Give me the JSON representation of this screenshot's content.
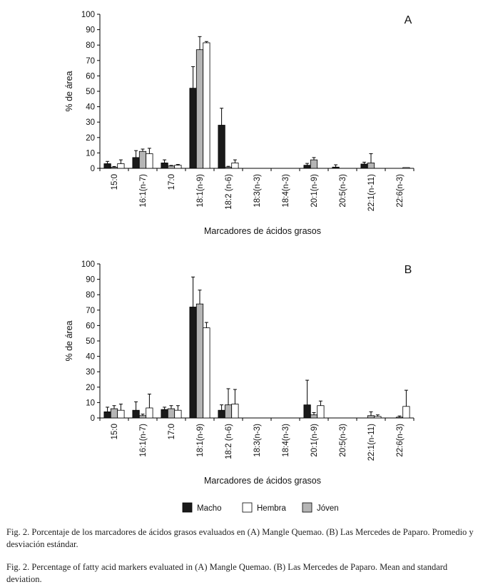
{
  "chart_data": [
    {
      "type": "bar",
      "panel_label": "A",
      "ylabel": "% de área",
      "xlabel": "Marcadores de ácidos grasos",
      "ylim": [
        0,
        100
      ],
      "yticks": [
        0,
        10,
        20,
        30,
        40,
        50,
        60,
        70,
        80,
        90,
        100
      ],
      "grid": false,
      "categories": [
        "15:0",
        "16:1(n-7)",
        "17:0",
        "18:1(n-9)",
        "18:2 (n-6)",
        "18:3(n-3)",
        "18:4(n-3)",
        "20:1(n-9)",
        "20:5(n-3)",
        "22:1(n-11)",
        "22:6(n-3)"
      ],
      "series": [
        {
          "name": "Macho",
          "color": "#1a1a1a",
          "values": [
            3,
            7,
            3.5,
            52,
            28,
            0,
            0,
            2,
            0.8,
            2.8,
            0
          ],
          "errors": [
            1.5,
            4.5,
            2,
            14,
            11,
            0,
            0,
            1.2,
            1.5,
            1.2,
            0
          ]
        },
        {
          "name": "Jóven",
          "color": "#b5b5b5",
          "values": [
            0.7,
            11,
            1.5,
            77,
            0.8,
            0,
            0,
            5.5,
            0,
            3.5,
            0
          ],
          "errors": [
            0.5,
            1.5,
            0.4,
            8.5,
            0.5,
            0,
            0,
            1.5,
            0,
            6,
            0
          ]
        },
        {
          "name": "Hembra",
          "color": "#ffffff",
          "values": [
            3,
            9.5,
            2,
            81.5,
            3.5,
            0,
            0,
            0,
            0,
            0,
            0.5
          ],
          "errors": [
            2.5,
            3.5,
            0.5,
            0.8,
            2,
            0,
            0,
            0,
            0,
            0,
            0
          ]
        }
      ]
    },
    {
      "type": "bar",
      "panel_label": "B",
      "ylabel": "% de área",
      "xlabel": "Marcadores de ácidos grasos",
      "ylim": [
        0,
        100
      ],
      "yticks": [
        0,
        10,
        20,
        30,
        40,
        50,
        60,
        70,
        80,
        90,
        100
      ],
      "grid": false,
      "categories": [
        "15:0",
        "16:1(n-7)",
        "17:0",
        "18:1(n-9)",
        "18:2 (n-6)",
        "18:3(n-3)",
        "18:4(n-3)",
        "20:1(n-9)",
        "20:5(n-3)",
        "22:1(n-11)",
        "22:6(n-3)"
      ],
      "series": [
        {
          "name": "Macho",
          "color": "#1a1a1a",
          "values": [
            4,
            5,
            5.5,
            72,
            5,
            0,
            0,
            8.5,
            0,
            0,
            0
          ],
          "errors": [
            3,
            5.5,
            1.5,
            19.5,
            3.5,
            0,
            0,
            16,
            0,
            0,
            0
          ]
        },
        {
          "name": "Jóven",
          "color": "#b5b5b5",
          "values": [
            6,
            1.5,
            6,
            74,
            8.5,
            0,
            0,
            2,
            0,
            1.5,
            0.5
          ],
          "errors": [
            2,
            1,
            2,
            9,
            10.5,
            0,
            0,
            1.5,
            0,
            2.5,
            0.8
          ]
        },
        {
          "name": "Hembra",
          "color": "#ffffff",
          "values": [
            5,
            6.5,
            5,
            58.5,
            9,
            0,
            0,
            8,
            0,
            1,
            7.5
          ],
          "errors": [
            4,
            9,
            3,
            3.5,
            9.5,
            0,
            0,
            3,
            0,
            1,
            10.5
          ]
        }
      ]
    }
  ],
  "legend": {
    "position": "bottom",
    "items": [
      {
        "name": "Macho",
        "color": "#1a1a1a"
      },
      {
        "name": "Hembra",
        "color": "#ffffff"
      },
      {
        "name": "Jóven",
        "color": "#b5b5b5"
      }
    ]
  },
  "caption_es": "Fig. 2. Porcentaje de los marcadores de ácidos grasos evaluados en (A) Mangle Quemao. (B) Las Mercedes de Paparo. Promedio y desviación estándar.",
  "caption_en": "Fig. 2. Percentage of fatty acid markers evaluated in (A) Mangle Quemao. (B) Las Mercedes de Paparo. Mean and standard deviation."
}
